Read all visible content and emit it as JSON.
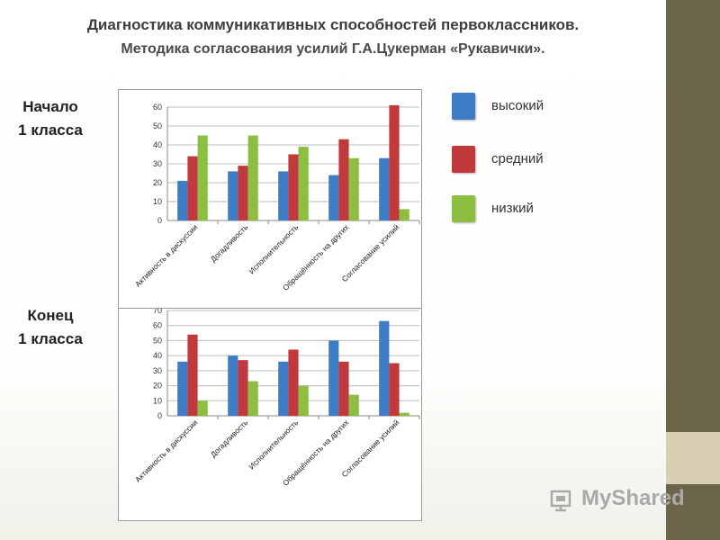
{
  "title_line1": "Диагностика коммуникативных способностей первоклассников.",
  "title_line2": "Методика согласования усилий Г.А.Цукерман «Рукавички».",
  "label_start": [
    "Начало",
    "1 класса"
  ],
  "label_end": [
    "Конец",
    "1 класса"
  ],
  "legend": [
    {
      "label": "высокий",
      "color": "#3e7cc5"
    },
    {
      "label": "средний",
      "color": "#c0393b"
    },
    {
      "label": "низкий",
      "color": "#8cbf3f"
    }
  ],
  "watermark": "MyShared",
  "chart_data": [
    {
      "type": "bar",
      "categories": [
        "Активность в дискуссии",
        "Догадливость",
        "Исполнительность",
        "Обращённость на других",
        "Согласование усилий"
      ],
      "ylim": [
        0,
        60
      ],
      "yticks": [
        0,
        10,
        20,
        30,
        40,
        50,
        60
      ],
      "grid": true,
      "series": [
        {
          "name": "высокий",
          "color": "#3e7cc5",
          "values": [
            21,
            26,
            26,
            24,
            33
          ]
        },
        {
          "name": "средний",
          "color": "#c0393b",
          "values": [
            34,
            29,
            35,
            43,
            61
          ]
        },
        {
          "name": "низкий",
          "color": "#8cbf3f",
          "values": [
            45,
            45,
            39,
            33,
            6
          ]
        }
      ]
    },
    {
      "type": "bar",
      "categories": [
        "Активность в дискуссии",
        "Догадливость",
        "Исполнительность",
        "Обращённость на других",
        "Согласование усилий"
      ],
      "ylim": [
        0,
        70
      ],
      "yticks": [
        0,
        10,
        20,
        30,
        40,
        50,
        60,
        70
      ],
      "grid": true,
      "series": [
        {
          "name": "высокий",
          "color": "#3e7cc5",
          "values": [
            36,
            40,
            36,
            50,
            63
          ]
        },
        {
          "name": "средний",
          "color": "#c0393b",
          "values": [
            54,
            37,
            44,
            36,
            35
          ]
        },
        {
          "name": "низкий",
          "color": "#8cbf3f",
          "values": [
            10,
            23,
            20,
            14,
            2
          ]
        }
      ]
    }
  ]
}
